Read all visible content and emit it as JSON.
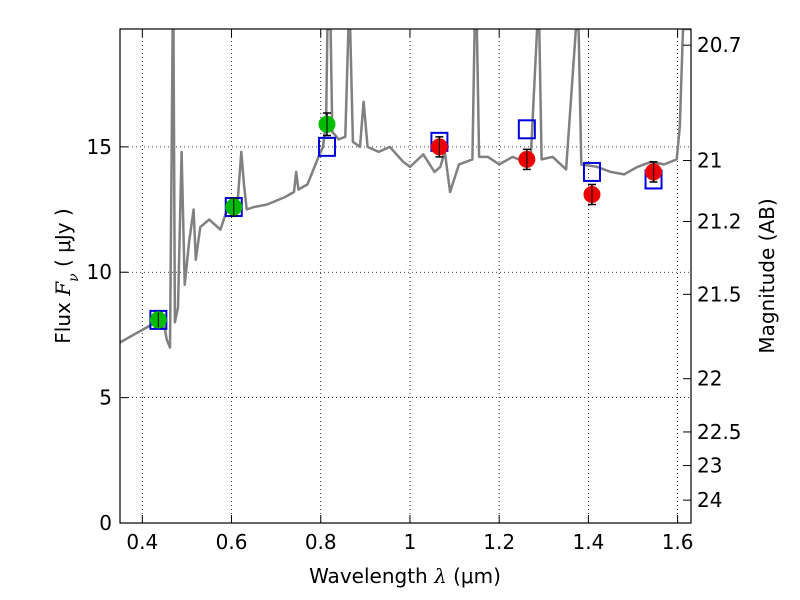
{
  "chart_data": {
    "type": "scatter",
    "xlabel": {
      "prefix": "Wavelength ",
      "symbol": "λ",
      "unit": " (μm)"
    },
    "ylabel": {
      "prefix": "Flux ",
      "symbol": "F",
      "subscript": "ν",
      "unit": " ( μJy )"
    },
    "y2label": "Magnitude (AB)",
    "xlim": [
      0.35,
      1.63
    ],
    "ylim": [
      0,
      19.7
    ],
    "grid": true,
    "x_ticks": [
      {
        "value": 0.4,
        "label": "0.4"
      },
      {
        "value": 0.6,
        "label": "0.6"
      },
      {
        "value": 0.8,
        "label": "0.8"
      },
      {
        "value": 1.0,
        "label": "1"
      },
      {
        "value": 1.2,
        "label": "1.2"
      },
      {
        "value": 1.4,
        "label": "1.4"
      },
      {
        "value": 1.6,
        "label": "1.6"
      }
    ],
    "y_ticks": [
      {
        "value": 0,
        "label": "0"
      },
      {
        "value": 5,
        "label": "5"
      },
      {
        "value": 10,
        "label": "10"
      },
      {
        "value": 15,
        "label": "15"
      }
    ],
    "y2_ticks": [
      {
        "value": 20.7,
        "label": "20.7"
      },
      {
        "value": 21,
        "label": "21"
      },
      {
        "value": 21.2,
        "label": "21.2"
      },
      {
        "value": 21.5,
        "label": "21.5"
      },
      {
        "value": 22,
        "label": "22"
      },
      {
        "value": 22.5,
        "label": "22.5"
      },
      {
        "value": 23,
        "label": "23"
      },
      {
        "value": 24,
        "label": "24"
      }
    ],
    "model_spectrum": {
      "color": "#808080",
      "points": [
        [
          0.35,
          7.2
        ],
        [
          0.37,
          7.4
        ],
        [
          0.39,
          7.6
        ],
        [
          0.41,
          7.8
        ],
        [
          0.43,
          8.0
        ],
        [
          0.45,
          7.8
        ],
        [
          0.455,
          7.3
        ],
        [
          0.462,
          7.0
        ],
        [
          0.466,
          15.0
        ],
        [
          0.468,
          19.7
        ],
        [
          0.47,
          19.7
        ],
        [
          0.473,
          8.0
        ],
        [
          0.48,
          8.6
        ],
        [
          0.488,
          14.8
        ],
        [
          0.495,
          9.5
        ],
        [
          0.505,
          11.2
        ],
        [
          0.515,
          12.5
        ],
        [
          0.52,
          10.5
        ],
        [
          0.53,
          11.8
        ],
        [
          0.55,
          12.1
        ],
        [
          0.575,
          11.7
        ],
        [
          0.59,
          12.5
        ],
        [
          0.603,
          12.8
        ],
        [
          0.612,
          12.4
        ],
        [
          0.622,
          14.8
        ],
        [
          0.628,
          13.5
        ],
        [
          0.634,
          12.5
        ],
        [
          0.65,
          12.6
        ],
        [
          0.68,
          12.7
        ],
        [
          0.72,
          13.0
        ],
        [
          0.74,
          13.2
        ],
        [
          0.745,
          14.0
        ],
        [
          0.75,
          13.3
        ],
        [
          0.77,
          13.5
        ],
        [
          0.795,
          14.6
        ],
        [
          0.805,
          15.0
        ],
        [
          0.812,
          16.0
        ],
        [
          0.815,
          19.7
        ],
        [
          0.822,
          19.7
        ],
        [
          0.826,
          15.6
        ],
        [
          0.84,
          15.3
        ],
        [
          0.855,
          15.4
        ],
        [
          0.862,
          19.7
        ],
        [
          0.866,
          19.7
        ],
        [
          0.872,
          15.2
        ],
        [
          0.888,
          15.0
        ],
        [
          0.896,
          16.8
        ],
        [
          0.905,
          15.0
        ],
        [
          0.93,
          14.8
        ],
        [
          0.955,
          15.0
        ],
        [
          0.985,
          14.4
        ],
        [
          1.0,
          14.2
        ],
        [
          1.03,
          14.7
        ],
        [
          1.055,
          14.0
        ],
        [
          1.068,
          14.2
        ],
        [
          1.078,
          14.8
        ],
        [
          1.09,
          13.2
        ],
        [
          1.11,
          14.3
        ],
        [
          1.14,
          14.5
        ],
        [
          1.145,
          19.7
        ],
        [
          1.15,
          19.7
        ],
        [
          1.155,
          14.6
        ],
        [
          1.175,
          14.6
        ],
        [
          1.2,
          14.3
        ],
        [
          1.23,
          14.6
        ],
        [
          1.27,
          14.3
        ],
        [
          1.285,
          19.7
        ],
        [
          1.29,
          19.7
        ],
        [
          1.295,
          14.5
        ],
        [
          1.32,
          14.6
        ],
        [
          1.35,
          14.1
        ],
        [
          1.372,
          19.7
        ],
        [
          1.378,
          19.7
        ],
        [
          1.384,
          14.3
        ],
        [
          1.42,
          14.2
        ],
        [
          1.45,
          14.0
        ],
        [
          1.48,
          13.9
        ],
        [
          1.51,
          14.2
        ],
        [
          1.54,
          14.4
        ],
        [
          1.57,
          14.3
        ],
        [
          1.598,
          14.5
        ],
        [
          1.605,
          15.8
        ],
        [
          1.612,
          19.7
        ],
        [
          1.63,
          19.7
        ]
      ]
    },
    "series": [
      {
        "marker": "circle",
        "color": "#00bb00",
        "points": [
          {
            "x": 0.436,
            "y": 8.1,
            "err": 0.3
          },
          {
            "x": 0.605,
            "y": 12.6,
            "err": 0.35
          },
          {
            "x": 0.814,
            "y": 15.9,
            "err": 0.45
          }
        ]
      },
      {
        "marker": "circle",
        "color": "#ee0000",
        "points": [
          {
            "x": 1.066,
            "y": 15.0,
            "err": 0.4
          },
          {
            "x": 1.262,
            "y": 14.5,
            "err": 0.4
          },
          {
            "x": 1.408,
            "y": 13.1,
            "err": 0.4
          },
          {
            "x": 1.546,
            "y": 14.0,
            "err": 0.4
          }
        ]
      },
      {
        "marker": "open-square",
        "color": "#0000dd",
        "points": [
          {
            "x": 0.436,
            "y": 8.1
          },
          {
            "x": 0.605,
            "y": 12.6
          },
          {
            "x": 0.814,
            "y": 15.0
          },
          {
            "x": 1.066,
            "y": 15.2
          },
          {
            "x": 1.262,
            "y": 15.7
          },
          {
            "x": 1.408,
            "y": 14.0
          },
          {
            "x": 1.546,
            "y": 13.7
          }
        ]
      }
    ]
  }
}
